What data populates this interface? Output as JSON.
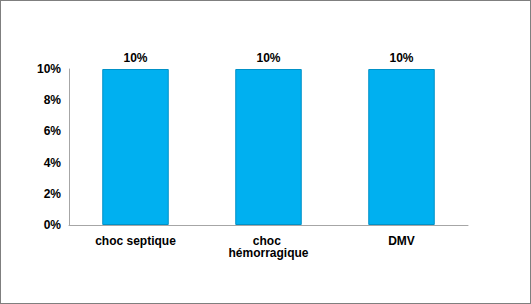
{
  "chart_data": {
    "type": "bar",
    "categories": [
      "choc septique",
      "choc hémorragique",
      "DMV"
    ],
    "values": [
      10,
      10,
      10
    ],
    "value_labels": [
      "10%",
      "10%",
      "10%"
    ],
    "data_labels": true,
    "color": "#00b0f0",
    "ylim": [
      0,
      10
    ],
    "yticks": [
      {
        "value": 0,
        "label": "0%"
      },
      {
        "value": 2,
        "label": "2%"
      },
      {
        "value": 4,
        "label": "4%"
      },
      {
        "value": 6,
        "label": "6%"
      },
      {
        "value": 8,
        "label": "8%"
      },
      {
        "value": 10,
        "label": "10%"
      }
    ],
    "grid": false
  }
}
